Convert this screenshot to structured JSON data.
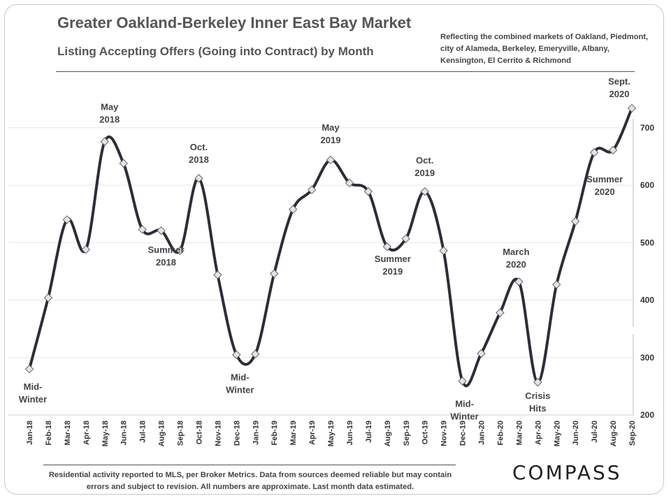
{
  "header": {
    "title": "Greater Oakland-Berkeley Inner East Bay Market",
    "subtitle": "Listing Accepting Offers (Going into Contract) by Month",
    "note": "Reflecting the combined markets of Oakland, Piedmont, city of Alameda, Berkeley, Emeryville, Albany, Kensington, El Cerrito & Richmond"
  },
  "footer": {
    "note": "Residential activity reported to MLS, per Broker Metrics. Data from sources deemed reliable but may contain errors and subject to revision. All numbers are approximate. Last month data estimated.",
    "logo": "COMPASS"
  },
  "colors": {
    "line": "#2b2d3a",
    "marker_fill": "#e4e4e4",
    "grid": "#e6e6e6",
    "text": "#444444"
  },
  "chart_data": {
    "type": "line",
    "title": "Greater Oakland-Berkeley Inner East Bay Market",
    "subtitle": "Listing Accepting Offers (Going into Contract) by Month",
    "xlabel": "",
    "ylabel": "",
    "ylim": [
      200,
      700
    ],
    "yticks": [
      200,
      300,
      400,
      500,
      600,
      700
    ],
    "y_axis_side": "right",
    "grid": true,
    "categories": [
      "Jan-18",
      "Feb-18",
      "Mar-18",
      "Apr-18",
      "May-18",
      "Jun-18",
      "Jul-18",
      "Aug-18",
      "Sep-18",
      "Oct-18",
      "Nov-18",
      "Dec-18",
      "Jan-19",
      "Feb-19",
      "Mar-19",
      "Apr-19",
      "May-19",
      "Jun-19",
      "Jul-19",
      "Aug-19",
      "Sep-19",
      "Oct-19",
      "Nov-19",
      "Dec-19",
      "Jan-20",
      "Feb-20",
      "Mar-20",
      "Apr-20",
      "May-20",
      "Jun-20",
      "Jul-20",
      "Aug-20",
      "Sep-20"
    ],
    "series": [
      {
        "name": "Listings Accepting Offers",
        "values": [
          280,
          404,
          540,
          488,
          676,
          638,
          523,
          521,
          486,
          612,
          444,
          305,
          306,
          446,
          558,
          592,
          644,
          604,
          589,
          493,
          507,
          589,
          486,
          259,
          307,
          378,
          432,
          257,
          427,
          537,
          657,
          661,
          734
        ]
      }
    ],
    "annotations": [
      {
        "index": 0,
        "lines": [
          "Mid-",
          "Winter"
        ],
        "pos": "below"
      },
      {
        "index": 4,
        "lines": [
          "May",
          "2018"
        ],
        "pos": "above"
      },
      {
        "index": 8,
        "lines": [
          "Summer",
          "2018"
        ],
        "pos": "below"
      },
      {
        "index": 9,
        "lines": [
          "Oct.",
          "2018"
        ],
        "pos": "above"
      },
      {
        "index": 11,
        "lines": [
          "Mid-",
          "Winter"
        ],
        "pos": "below"
      },
      {
        "index": 16,
        "lines": [
          "May",
          "2019"
        ],
        "pos": "above"
      },
      {
        "index": 19,
        "lines": [
          "Summer",
          "2019"
        ],
        "pos": "below"
      },
      {
        "index": 21,
        "lines": [
          "Oct.",
          "2019"
        ],
        "pos": "above"
      },
      {
        "index": 23,
        "lines": [
          "Mid-",
          "Winter"
        ],
        "pos": "below"
      },
      {
        "index": 26,
        "lines": [
          "March",
          "2020"
        ],
        "pos": "above"
      },
      {
        "index": 27,
        "lines": [
          "Crisis",
          "Hits"
        ],
        "pos": "below"
      },
      {
        "index": 30,
        "lines": [
          "Summer",
          "2020"
        ],
        "pos": "below"
      },
      {
        "index": 32,
        "lines": [
          "Sept.",
          "2020"
        ],
        "pos": "above"
      }
    ]
  }
}
